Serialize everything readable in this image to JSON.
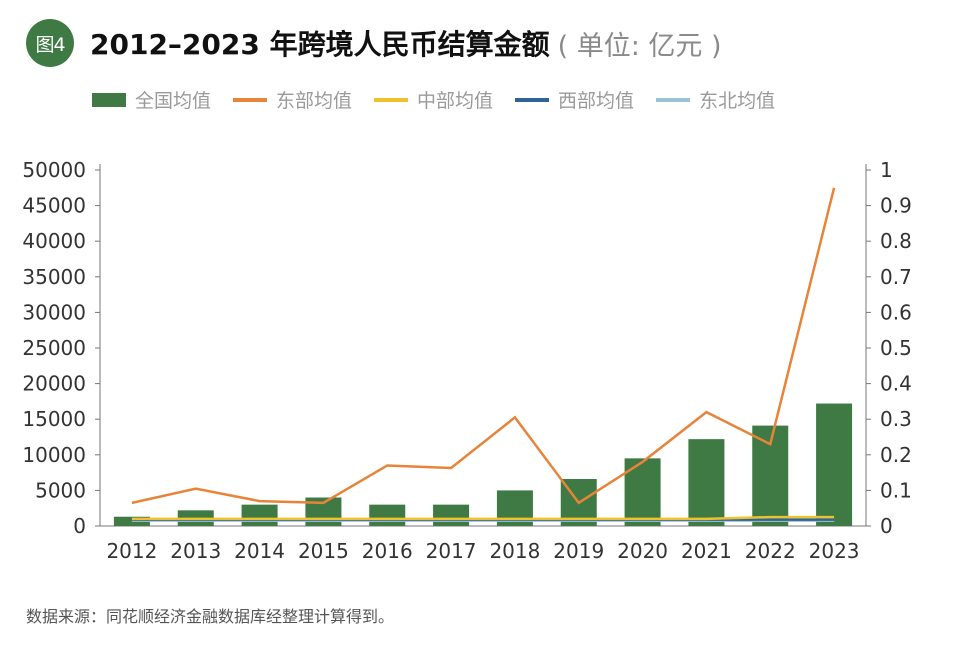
{
  "header": {
    "badge": "图4",
    "title": "2012–2023 年跨境人民币结算金额",
    "unit": "( 单位: 亿元 )"
  },
  "source": "数据来源：同花顺经济金融数据库经整理计算得到。",
  "chart_data": {
    "type": "bar",
    "title": "2012–2023 年跨境人民币结算金额",
    "categories": [
      "2012",
      "2013",
      "2014",
      "2015",
      "2016",
      "2017",
      "2018",
      "2019",
      "2020",
      "2021",
      "2022",
      "2023"
    ],
    "y_left": {
      "range": [
        0,
        50000
      ],
      "ticks": [
        "50000",
        "45000",
        "40000",
        "35000",
        "30000",
        "25000",
        "20000",
        "15000",
        "10000",
        "5000",
        "0"
      ]
    },
    "y_right": {
      "range": [
        0,
        1
      ],
      "ticks": [
        "1",
        "0.9",
        "0.8",
        "0.7",
        "0.6",
        "0.5",
        "0.4",
        "0.3",
        "0.2",
        "0.1",
        "0"
      ]
    },
    "grid": false,
    "legend_position": "top-left",
    "series": [
      {
        "name": "全国均值",
        "kind": "bar",
        "axis": "left",
        "color": "#3f7a45",
        "values": [
          1300,
          2200,
          3000,
          4000,
          3000,
          3000,
          5000,
          6600,
          9500,
          12200,
          14100,
          17200
        ]
      },
      {
        "name": "东部均值",
        "kind": "line",
        "axis": "right",
        "color": "#e8843a",
        "values": [
          0.065,
          0.105,
          0.07,
          0.065,
          0.17,
          0.163,
          0.305,
          0.065,
          0.18,
          0.32,
          0.23,
          0.95
        ]
      },
      {
        "name": "中部均值",
        "kind": "line",
        "axis": "right",
        "color": "#efc12c",
        "values": [
          0.02,
          0.02,
          0.02,
          0.02,
          0.02,
          0.02,
          0.02,
          0.02,
          0.02,
          0.02,
          0.025,
          0.025
        ]
      },
      {
        "name": "西部均值",
        "kind": "line",
        "axis": "right",
        "color": "#2f6496",
        "values": [
          0.018,
          0.018,
          0.018,
          0.018,
          0.018,
          0.018,
          0.018,
          0.018,
          0.018,
          0.018,
          0.018,
          0.018
        ]
      },
      {
        "name": "东北均值",
        "kind": "line",
        "axis": "right",
        "color": "#9cc3d5",
        "values": [
          0.015,
          0.015,
          0.015,
          0.015,
          0.015,
          0.015,
          0.015,
          0.015,
          0.015,
          0.015,
          0.015,
          0.015
        ]
      }
    ]
  }
}
